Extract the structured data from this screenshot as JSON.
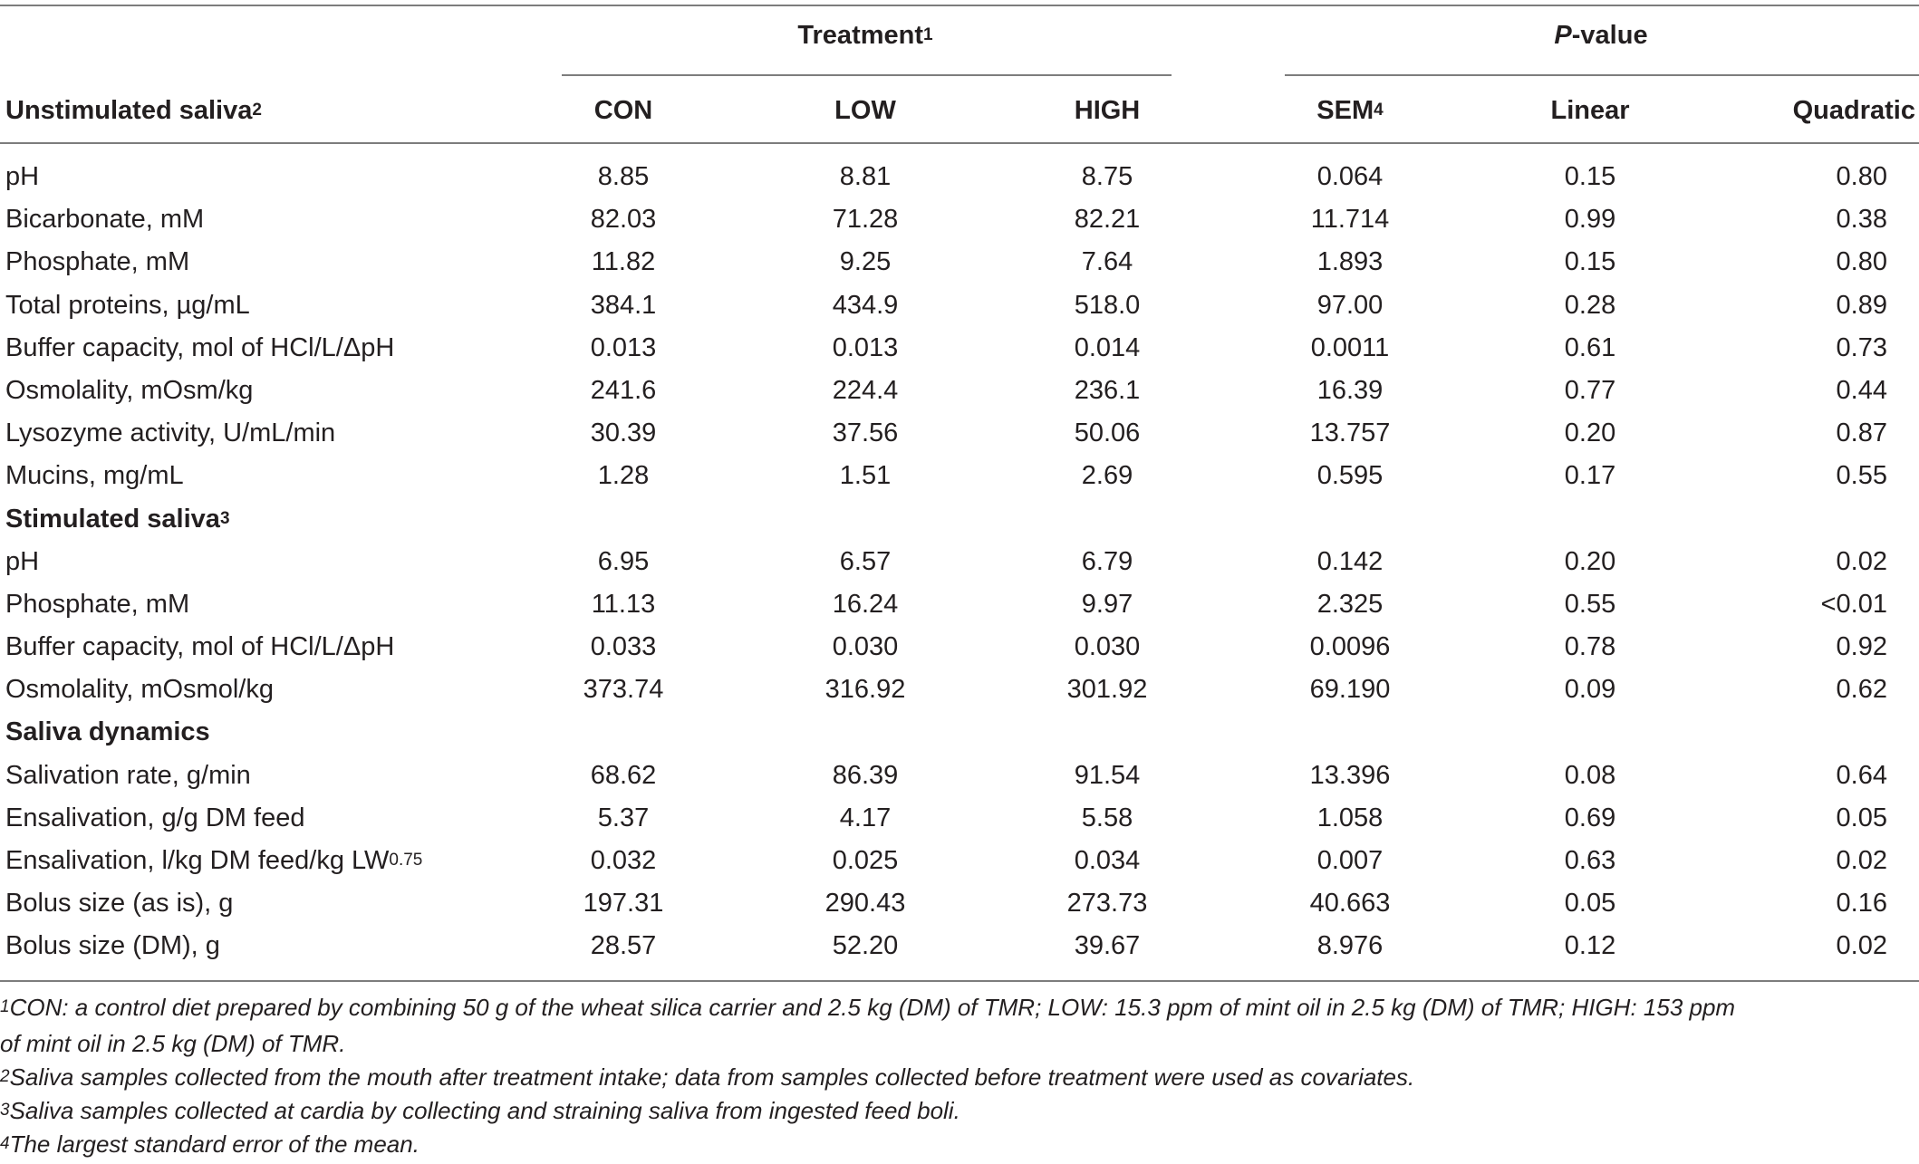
{
  "header": {
    "group_treatment": "Treatment",
    "group_treatment_sup": "1",
    "group_pvalue_italic": "P",
    "group_pvalue_rest": "-value",
    "row_label": "Unstimulated saliva",
    "row_label_sup": "2",
    "col_con": "CON",
    "col_low": "LOW",
    "col_high": "HIGH",
    "col_sem": "SEM",
    "col_sem_sup": "4",
    "col_linear": "Linear",
    "col_quadratic": "Quadratic"
  },
  "rows": [
    {
      "type": "data",
      "label": "pH",
      "values": [
        "8.85",
        "8.81",
        "8.75",
        "0.064",
        "0.15",
        "0.80"
      ]
    },
    {
      "type": "data",
      "label": "Bicarbonate, mM",
      "values": [
        "82.03",
        "71.28",
        "82.21",
        "11.714",
        "0.99",
        "0.38"
      ]
    },
    {
      "type": "data",
      "label": "Phosphate, mM",
      "values": [
        "11.82",
        "9.25",
        "7.64",
        "1.893",
        "0.15",
        "0.80"
      ]
    },
    {
      "type": "data",
      "label": "Total proteins, µg/mL",
      "values": [
        "384.1",
        "434.9",
        "518.0",
        "97.00",
        "0.28",
        "0.89"
      ]
    },
    {
      "type": "data",
      "label": "Buffer capacity, mol of HCl/L/ΔpH",
      "values": [
        "0.013",
        "0.013",
        "0.014",
        "0.0011",
        "0.61",
        "0.73"
      ]
    },
    {
      "type": "data",
      "label": "Osmolality, mOsm/kg",
      "values": [
        "241.6",
        "224.4",
        "236.1",
        "16.39",
        "0.77",
        "0.44"
      ]
    },
    {
      "type": "data",
      "label": "Lysozyme activity, U/mL/min",
      "values": [
        "30.39",
        "37.56",
        "50.06",
        "13.757",
        "0.20",
        "0.87"
      ]
    },
    {
      "type": "data",
      "label": "Mucins, mg/mL",
      "values": [
        "1.28",
        "1.51",
        "2.69",
        "0.595",
        "0.17",
        "0.55"
      ]
    },
    {
      "type": "section",
      "label": "Stimulated saliva",
      "sup": "3"
    },
    {
      "type": "data",
      "label": "pH",
      "values": [
        "6.95",
        "6.57",
        "6.79",
        "0.142",
        "0.20",
        "0.02"
      ]
    },
    {
      "type": "data",
      "label": "Phosphate, mM",
      "values": [
        "11.13",
        "16.24",
        "9.97",
        "2.325",
        "0.55",
        "<0.01"
      ]
    },
    {
      "type": "data",
      "label": "Buffer capacity, mol of HCl/L/ΔpH",
      "values": [
        "0.033",
        "0.030",
        "0.030",
        "0.0096",
        "0.78",
        "0.92"
      ]
    },
    {
      "type": "data",
      "label": "Osmolality, mOsmol/kg",
      "values": [
        "373.74",
        "316.92",
        "301.92",
        "69.190",
        "0.09",
        "0.62"
      ]
    },
    {
      "type": "section",
      "label": "Saliva dynamics"
    },
    {
      "type": "data",
      "label": "Salivation rate, g/min",
      "values": [
        "68.62",
        "86.39",
        "91.54",
        "13.396",
        "0.08",
        "0.64"
      ]
    },
    {
      "type": "data",
      "label": "Ensalivation, g/g DM feed",
      "values": [
        "5.37",
        "4.17",
        "5.58",
        "1.058",
        "0.69",
        "0.05"
      ]
    },
    {
      "type": "data",
      "label": "Ensalivation, l/kg DM feed/kg LW",
      "sup": "0.75",
      "values": [
        "0.032",
        "0.025",
        "0.034",
        "0.007",
        "0.63",
        "0.02"
      ]
    },
    {
      "type": "data",
      "label": "Bolus size (as is), g",
      "values": [
        "197.31",
        "290.43",
        "273.73",
        "40.663",
        "0.05",
        "0.16"
      ]
    },
    {
      "type": "data",
      "label": "Bolus size (DM), g",
      "values": [
        "28.57",
        "52.20",
        "39.67",
        "8.976",
        "0.12",
        "0.02"
      ]
    }
  ],
  "footnotes": [
    {
      "mark": "1",
      "lines": [
        "CON: a control diet prepared by combining 50 g of the wheat silica carrier and 2.5 kg (DM) of TMR; LOW: 15.3 ppm of mint oil in 2.5 kg (DM) of TMR; HIGH: 153 ppm",
        "of mint oil in 2.5 kg (DM) of TMR."
      ]
    },
    {
      "mark": "2",
      "lines": [
        "Saliva samples collected from the mouth after treatment intake; data from samples collected before treatment were used as covariates."
      ]
    },
    {
      "mark": "3",
      "lines": [
        "Saliva samples collected at cardia by collecting and straining saliva from ingested feed boli."
      ]
    },
    {
      "mark": "4",
      "lines": [
        "The largest standard error of the mean."
      ]
    }
  ]
}
